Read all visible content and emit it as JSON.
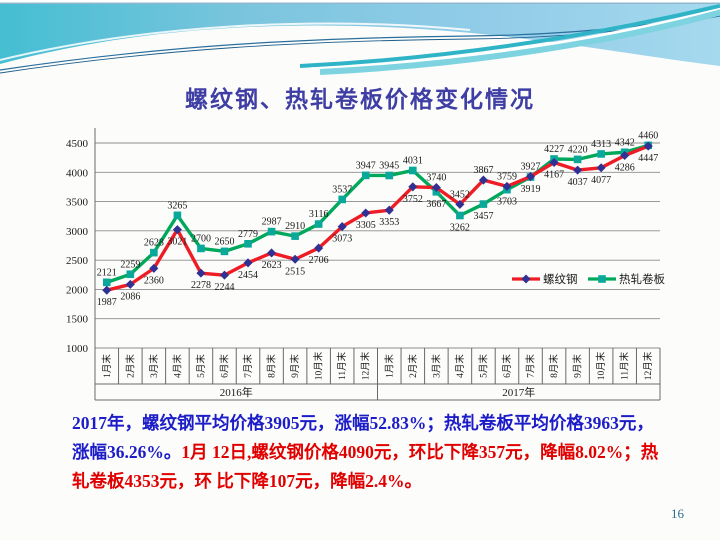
{
  "title": "螺纹钢、热轧卷板价格变化情况",
  "page_number": "16",
  "summary": {
    "blue_text": "2017年，螺纹钢平均价格3905元，涨幅52.83%；热轧卷板平均价格3963元，涨幅36.26%。",
    "red_text": "1月 12日,螺纹钢价格4090元，环比下降357元，降幅8.02%；热轧卷板4353元，环 比下降107元，降幅2.4%。",
    "blue_color": "#1c1cc8",
    "red_color": "#e00000"
  },
  "chart_data": {
    "type": "line",
    "title": "",
    "xlabel": "",
    "ylabel": "",
    "ylim": [
      1000,
      4500
    ],
    "yticks": [
      1000,
      1500,
      2000,
      2500,
      3000,
      3500,
      4000,
      4500
    ],
    "grid": true,
    "legend_position": "inside-right",
    "x_groups": [
      {
        "year": "2016年",
        "months": [
          "1月末",
          "2月末",
          "3月末",
          "4月末",
          "5月末",
          "6月末",
          "7月末",
          "8月末",
          "9月末",
          "10月末",
          "11月末",
          "12月末"
        ]
      },
      {
        "year": "2017年",
        "months": [
          "1月末",
          "2月末",
          "3月末",
          "4月末",
          "5月末",
          "6月末",
          "7月末",
          "8月末",
          "9月末",
          "10月末",
          "11月末",
          "12月末"
        ]
      }
    ],
    "categories": [
      "1月末",
      "2月末",
      "3月末",
      "4月末",
      "5月末",
      "6月末",
      "7月末",
      "8月末",
      "9月末",
      "10月末",
      "11月末",
      "12月末",
      "1月末",
      "2月末",
      "3月末",
      "4月末",
      "5月末",
      "6月末",
      "7月末",
      "8月末",
      "9月末",
      "10月末",
      "11月末",
      "12月末"
    ],
    "series": [
      {
        "key": "rebar",
        "name": "螺纹钢",
        "color": "#ee1c25",
        "marker": "diamond",
        "marker_color": "#303193",
        "values": [
          1987,
          2086,
          2360,
          3021,
          2278,
          2244,
          2454,
          2623,
          2515,
          2706,
          3073,
          3305,
          3353,
          3752,
          3740,
          3452,
          3867,
          3759,
          3927,
          4167,
          4037,
          4077,
          4286,
          4447
        ]
      },
      {
        "key": "hot-rolled-coil",
        "name": "热轧卷板",
        "color": "#00a85b",
        "marker": "square",
        "marker_color": "#0aa79b",
        "values": [
          2121,
          2259,
          2628,
          3265,
          2700,
          2650,
          2779,
          2987,
          2910,
          3116,
          3537,
          3947,
          3945,
          4031,
          3667,
          3262,
          3457,
          3703,
          3919,
          4227,
          4220,
          4313,
          4342,
          4460
        ]
      }
    ]
  }
}
